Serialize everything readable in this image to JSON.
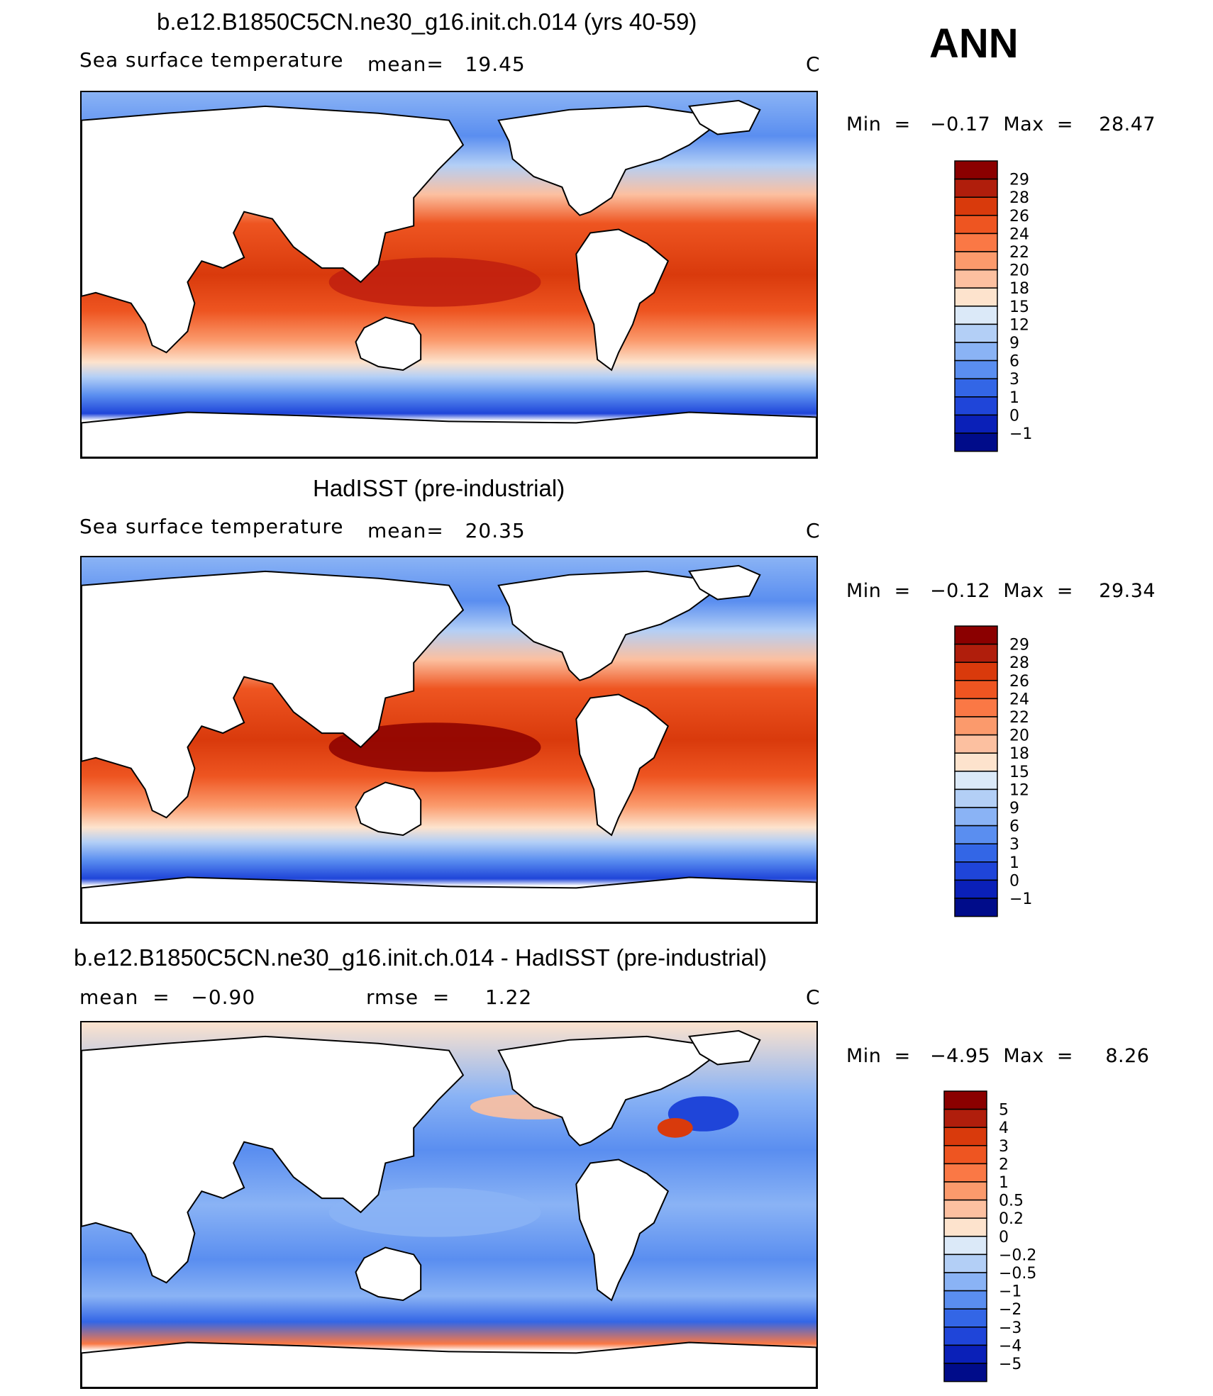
{
  "header": {
    "season": "ANN"
  },
  "panels": [
    {
      "id": "model",
      "title": "b.e12.B1850C5CN.ne30_g16.init.ch.014 (yrs 40-59)",
      "left_label": "Sea surface temperature",
      "stat_text": "mean=   19.45",
      "unit": "C",
      "min_max": "Min  =   −0.17  Max  =    28.47",
      "colorbar": {
        "labels": [
          "29",
          "28",
          "26",
          "24",
          "22",
          "20",
          "18",
          "15",
          "12",
          "9",
          "6",
          "3",
          "1",
          "0",
          "−1"
        ],
        "colors": [
          "#8b0000",
          "#b01e0c",
          "#d93a0c",
          "#ee5521",
          "#fa7845",
          "#fb9a6c",
          "#fcc0a0",
          "#fde3cd",
          "#dbe9f8",
          "#b3cff6",
          "#8ab3f5",
          "#5a8ef0",
          "#3366e6",
          "#1f45d9",
          "#0a20b8",
          "#000c8a"
        ]
      },
      "map_style": "sst",
      "warm_pool": "#c01f0f"
    },
    {
      "id": "obs",
      "title": "HadISST (pre-industrial)",
      "left_label": "Sea surface temperature",
      "stat_text": "mean=   20.35",
      "unit": "C",
      "min_max": "Min  =   −0.12  Max  =    29.34",
      "colorbar": {
        "labels": [
          "29",
          "28",
          "26",
          "24",
          "22",
          "20",
          "18",
          "15",
          "12",
          "9",
          "6",
          "3",
          "1",
          "0",
          "−1"
        ],
        "colors": [
          "#8b0000",
          "#b01e0c",
          "#d93a0c",
          "#ee5521",
          "#fa7845",
          "#fb9a6c",
          "#fcc0a0",
          "#fde3cd",
          "#dbe9f8",
          "#b3cff6",
          "#8ab3f5",
          "#5a8ef0",
          "#3366e6",
          "#1f45d9",
          "#0a20b8",
          "#000c8a"
        ]
      },
      "map_style": "sst",
      "warm_pool": "#8b0000"
    },
    {
      "id": "diff",
      "title": "b.e12.B1850C5CN.ne30_g16.init.ch.014 - HadISST (pre-industrial)",
      "left_label": "mean  =   −0.90",
      "stat_text": "rmse  =     1.22",
      "unit": "C",
      "min_max": "Min  =   −4.95  Max  =     8.26",
      "colorbar": {
        "labels": [
          "5",
          "4",
          "3",
          "2",
          "1",
          "0.5",
          "0.2",
          "0",
          "−0.2",
          "−0.5",
          "−1",
          "−2",
          "−3",
          "−4",
          "−5"
        ],
        "colors": [
          "#8b0000",
          "#b01e0c",
          "#d93a0c",
          "#ee5521",
          "#fa7845",
          "#fb9a6c",
          "#fcc0a0",
          "#fde3cd",
          "#dbe9f8",
          "#b3cff6",
          "#8ab3f5",
          "#5a8ef0",
          "#3366e6",
          "#1f45d9",
          "#0a20b8",
          "#000c8a"
        ]
      },
      "map_style": "diff",
      "warm_pool": "#8ab3f5"
    }
  ]
}
